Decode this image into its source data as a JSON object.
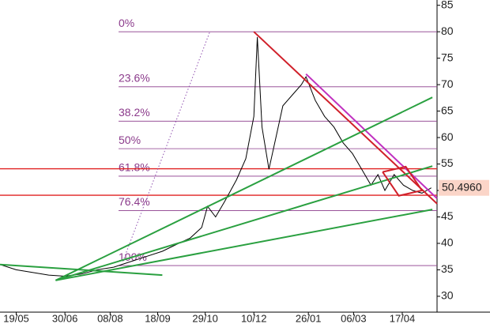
{
  "chart_data": {
    "type": "line",
    "x": [
      -14,
      0,
      14,
      28,
      42,
      56,
      70,
      84,
      98,
      112,
      126,
      140,
      150,
      160,
      165,
      172,
      180,
      190,
      198,
      205,
      208,
      212,
      218,
      224,
      230,
      238,
      246,
      250,
      258,
      266,
      274,
      282,
      290,
      298,
      306,
      312,
      318,
      326,
      334,
      342,
      350,
      358
    ],
    "series": [
      {
        "color": "#000000",
        "values": [
          36,
          35,
          34.5,
          34,
          33.8,
          34.2,
          35,
          35.5,
          36.5,
          37.5,
          38.5,
          40,
          41,
          43,
          47,
          45,
          48,
          52,
          56,
          64,
          79,
          62,
          54,
          60,
          66,
          68,
          70,
          71.5,
          67,
          64,
          62,
          59,
          57,
          54,
          51,
          53,
          50,
          53,
          51,
          50,
          49.5,
          50.5
        ]
      }
    ],
    "xlim": [
      -14,
      363
    ],
    "xticks": [
      {
        "value": 0,
        "label": "19/05"
      },
      {
        "value": 42,
        "label": "30/06"
      },
      {
        "value": 81,
        "label": "08/08"
      },
      {
        "value": 122,
        "label": "18/09"
      },
      {
        "value": 163,
        "label": "29/10"
      },
      {
        "value": 205,
        "label": "10/12"
      },
      {
        "value": 252,
        "label": "26/01"
      },
      {
        "value": 291,
        "label": "06/03"
      },
      {
        "value": 333,
        "label": "17/04"
      }
    ],
    "ylim": [
      27,
      86
    ],
    "yticks": [
      30,
      35,
      40,
      45,
      50,
      55,
      60,
      65,
      70,
      75,
      80,
      85
    ],
    "fibonacci": [
      {
        "label": "0%",
        "value": 80
      },
      {
        "label": "23.6%",
        "value": 69.6
      },
      {
        "label": "38.2%",
        "value": 63.1
      },
      {
        "label": "50%",
        "value": 57.9
      },
      {
        "label": "61.8%",
        "value": 52.7
      },
      {
        "label": "76.4%",
        "value": 46.2
      },
      {
        "label": "100%",
        "value": 35.8
      }
    ],
    "fib_color": "#8b3a8b",
    "horizontal_lines": [
      {
        "color": "#e02020",
        "value": 54.1
      },
      {
        "color": "#e02020",
        "value": 49.1
      }
    ],
    "trendlines": [
      {
        "color": "#d0202a",
        "x": [
          205,
          363
        ],
        "y": [
          80,
          47.5
        ]
      },
      {
        "color": "#c030c0",
        "x": [
          250,
          363
        ],
        "y": [
          72,
          48.5
        ]
      },
      {
        "color": "#2aa040",
        "x": [
          34,
          359
        ],
        "y": [
          33,
          67.6
        ]
      },
      {
        "color": "#2aa040",
        "x": [
          34,
          359
        ],
        "y": [
          33,
          54.6
        ]
      },
      {
        "color": "#2aa040",
        "x": [
          34,
          359
        ],
        "y": [
          33,
          46.4
        ]
      },
      {
        "color": "#2aa040",
        "x": [
          -14,
          126
        ],
        "y": [
          36,
          34
        ]
      },
      {
        "color": "#d0202a",
        "x": [
          316,
          330,
          350,
          336,
          316
        ],
        "y": [
          53.5,
          49,
          50,
          54.5,
          53.5
        ]
      }
    ],
    "dotted_line": {
      "color": "#9050b0",
      "x": [
        92,
        167
      ],
      "y": [
        36.6,
        80
      ]
    },
    "last": {
      "value": 50.496,
      "label": "50.4960"
    }
  }
}
